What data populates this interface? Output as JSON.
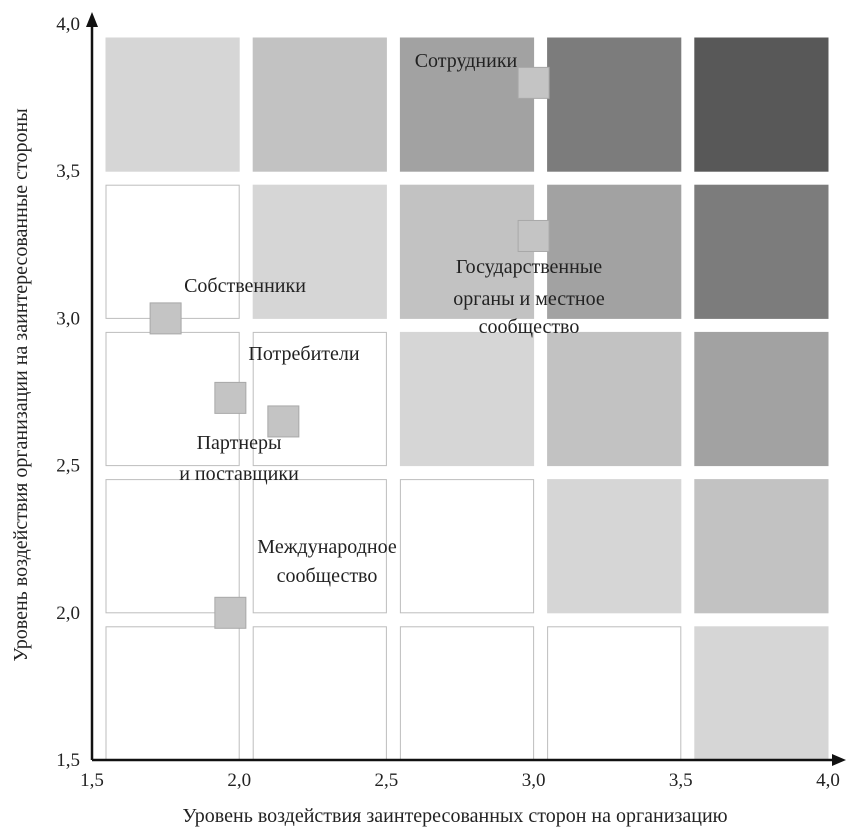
{
  "chart_data": {
    "type": "scatter",
    "title": "",
    "xlabel": "Уровень воздействия заинтересованных сторон на организацию",
    "ylabel": "Уровень воздействия организации на заинтересованные стороны",
    "xlim": [
      1.5,
      4.0
    ],
    "ylim": [
      1.5,
      4.0
    ],
    "x_ticks": [
      "1,5",
      "2,0",
      "2,5",
      "3,0",
      "3,5",
      "4,0"
    ],
    "y_ticks": [
      "1,5",
      "2,0",
      "2,5",
      "3,0",
      "3,5",
      "4,0"
    ],
    "grid": {
      "x_bins": [
        [
          1.5,
          2.0
        ],
        [
          2.0,
          2.5
        ],
        [
          2.5,
          3.0
        ],
        [
          3.0,
          3.5
        ],
        [
          3.5,
          4.0
        ]
      ],
      "y_bins": [
        [
          1.5,
          2.0
        ],
        [
          2.0,
          2.5
        ],
        [
          2.5,
          3.0
        ],
        [
          3.0,
          3.5
        ],
        [
          3.5,
          4.0
        ]
      ],
      "shade_colors": [
        "#ffffff",
        "#d6d6d6",
        "#c2c2c2",
        "#a2a2a2",
        "#7c7c7c",
        "#585858"
      ],
      "cell_shades": [
        [
          0,
          0,
          0,
          0,
          1
        ],
        [
          0,
          0,
          0,
          1,
          2
        ],
        [
          0,
          0,
          1,
          2,
          3
        ],
        [
          0,
          1,
          2,
          3,
          4
        ],
        [
          1,
          2,
          3,
          4,
          5
        ]
      ]
    },
    "points": [
      {
        "label": "Сотрудники",
        "x": 3.0,
        "y": 3.8
      },
      {
        "label": "Государственные органы и местное сообщество",
        "x": 3.0,
        "y": 3.28
      },
      {
        "label": "Собственники",
        "x": 1.75,
        "y": 3.0
      },
      {
        "label": "Потребители",
        "x": 1.97,
        "y": 2.73
      },
      {
        "label": "Партнеры и поставщики",
        "x": 2.15,
        "y": 2.65
      },
      {
        "label": "Международное сообщество",
        "x": 1.97,
        "y": 2.0
      }
    ],
    "point_color": "#c4c4c4"
  },
  "labels": {
    "employees": "Сотрудники",
    "government_1": "Государственные",
    "government_2": "органы и местное",
    "government_3": "сообщество",
    "owners": "Собственники",
    "consumers": "Потребители",
    "partners_1": "Партнеры",
    "partners_2": "и поставщики",
    "international_1": "Международное",
    "international_2": "сообщество"
  }
}
